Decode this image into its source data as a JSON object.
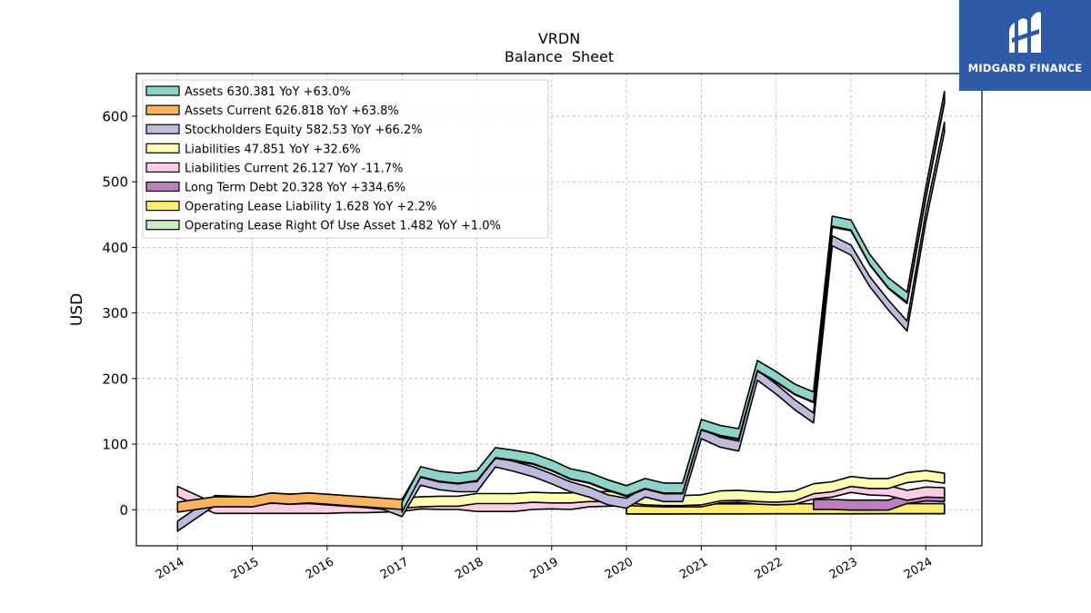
{
  "chart_data": {
    "type": "area",
    "title": "VRDN",
    "subtitle": "Balance  Sheet",
    "xlabel": "",
    "ylabel": "USD",
    "xlim": [
      2013.45,
      2024.75
    ],
    "ylim": [
      -55,
      665
    ],
    "yticks": [
      0,
      100,
      200,
      300,
      400,
      500,
      600
    ],
    "xticks": [
      "2014",
      "2015",
      "2016",
      "2017",
      "2018",
      "2019",
      "2020",
      "2021",
      "2022",
      "2023",
      "2024"
    ],
    "grid": true,
    "legend_position": "top-left",
    "series": [
      {
        "name": "Assets  630.381 YoY +63.0%",
        "color": "#8dd3c7",
        "x": [
          2017.0,
          2017.25,
          2017.5,
          2017.75,
          2018.0,
          2018.25,
          2018.5,
          2018.75,
          2019.0,
          2019.25,
          2019.5,
          2019.75,
          2020.0,
          2020.25,
          2020.5,
          2020.75,
          2021.0,
          2021.25,
          2021.5,
          2021.75,
          2022.0,
          2022.25,
          2022.5,
          2022.75,
          2023.0,
          2023.25,
          2023.5,
          2023.75,
          2024.0,
          2024.25
        ],
        "values": [
          4,
          58,
          51,
          48,
          52,
          87,
          83,
          78,
          68,
          55,
          49,
          38,
          29,
          40,
          33,
          33,
          130,
          121,
          116,
          220,
          203,
          184,
          172,
          440,
          434,
          382,
          346,
          324,
          484,
          630
        ]
      },
      {
        "name": "Assets Current  626.818 YoY +63.8%",
        "color": "#fdb462",
        "x": [
          2014.0,
          2014.5,
          2015.0,
          2015.25,
          2015.5,
          2015.75,
          2016.0,
          2016.25,
          2016.5,
          2016.75,
          2017.0,
          2017.25,
          2017.5,
          2017.75,
          2018.0,
          2018.25,
          2018.5,
          2018.75,
          2019.0,
          2019.25,
          2019.5,
          2019.75,
          2020.0,
          2020.25,
          2020.5,
          2020.75,
          2021.0,
          2021.25,
          2021.5,
          2021.75,
          2022.0,
          2022.25,
          2022.5,
          2022.75,
          2023.0,
          2023.25,
          2023.5,
          2023.75,
          2024.0,
          2024.25
        ],
        "values": [
          4,
          12,
          12,
          18,
          16,
          18,
          16,
          14,
          12,
          10,
          8,
          57,
          50,
          47,
          51,
          86,
          82,
          77,
          67,
          54,
          48,
          37,
          28,
          39,
          32,
          32,
          129,
          120,
          115,
          219,
          202,
          183,
          171,
          438,
          433,
          381,
          345,
          322,
          482,
          627
        ]
      },
      {
        "name": "Stockholders Equity  582.53 YoY +66.2%",
        "color": "#bebada",
        "x": [
          2014.0,
          2014.5,
          2015.0,
          2015.25,
          2015.5,
          2015.75,
          2016.0,
          2016.25,
          2016.5,
          2016.75,
          2017.0,
          2017.25,
          2017.5,
          2017.75,
          2018.0,
          2018.25,
          2018.5,
          2018.75,
          2019.0,
          2019.25,
          2019.5,
          2019.75,
          2020.0,
          2020.25,
          2020.5,
          2020.75,
          2021.0,
          2021.25,
          2021.5,
          2021.75,
          2022.0,
          2022.25,
          2022.5,
          2022.75,
          2023.0,
          2023.25,
          2023.5,
          2023.75,
          2024.0,
          2024.25
        ],
        "values": [
          -25,
          14,
          12,
          18,
          16,
          17,
          15,
          13,
          11,
          8,
          -3,
          45,
          38,
          35,
          35,
          73,
          66,
          58,
          47,
          35,
          27,
          15,
          10,
          27,
          20,
          20,
          116,
          103,
          97,
          205,
          184,
          160,
          140,
          410,
          396,
          348,
          312,
          280,
          446,
          583
        ]
      },
      {
        "name": "Liabilities  47.851 YoY +32.6%",
        "color": "#ffffb3",
        "x": [
          2017.0,
          2017.25,
          2017.5,
          2017.75,
          2018.0,
          2018.25,
          2018.5,
          2018.75,
          2019.0,
          2019.25,
          2019.5,
          2019.75,
          2020.0,
          2020.25,
          2020.5,
          2020.75,
          2021.0,
          2021.25,
          2021.5,
          2021.75,
          2022.0,
          2022.25,
          2022.5,
          2022.75,
          2023.0,
          2023.25,
          2023.5,
          2023.75,
          2024.0,
          2024.25
        ],
        "values": [
          10,
          12,
          13,
          13,
          17,
          17,
          17,
          19,
          18,
          18,
          20,
          20,
          19,
          15,
          14,
          14,
          15,
          21,
          22,
          20,
          19,
          21,
          32,
          35,
          43,
          40,
          40,
          49,
          52,
          48
        ]
      },
      {
        "name": "Liabilities Current  26.127 YoY -11.7%",
        "color": "#fccde5",
        "x": [
          2014.0,
          2014.5,
          2015.0,
          2015.25,
          2015.5,
          2015.75,
          2016.0,
          2016.25,
          2016.5,
          2016.75,
          2017.0,
          2017.25,
          2017.5,
          2017.75,
          2018.0,
          2018.25,
          2018.5,
          2018.75,
          2019.0,
          2019.25,
          2019.5,
          2019.75,
          2020.0,
          2020.25,
          2020.5,
          2020.75,
          2021.0,
          2021.25,
          2021.5,
          2021.75,
          2022.0,
          2022.25,
          2022.5,
          2022.75,
          2023.0,
          2023.25,
          2023.5,
          2023.75,
          2024.0,
          2024.25
        ],
        "values": [
          28,
          2,
          2,
          2,
          2,
          2,
          2,
          3,
          3,
          4,
          5,
          9,
          8,
          8,
          5,
          5,
          5,
          8,
          9,
          8,
          12,
          13,
          14,
          13,
          12,
          12,
          12,
          18,
          19,
          16,
          15,
          16,
          24,
          27,
          34,
          30,
          29,
          22,
          27,
          26
        ]
      },
      {
        "name": "Long Term Debt  20.328 YoY +334.6%",
        "color": "#bc80bd",
        "x": [
          2022.5,
          2022.75,
          2023.0,
          2023.25,
          2023.5,
          2023.75,
          2024.0,
          2024.25
        ],
        "values": [
          8,
          8,
          7,
          7,
          7,
          17,
          21,
          20
        ]
      },
      {
        "name": "Operating Lease Liability  1.628 YoY +2.2%",
        "color": "#ffed6f",
        "x": [
          2020.0,
          2020.5,
          2021.0,
          2021.5,
          2022.0,
          2022.5,
          2023.0,
          2023.5,
          2024.0,
          2024.25
        ],
        "values": [
          1.3,
          1.3,
          1.4,
          1.4,
          1.5,
          1.5,
          1.5,
          1.6,
          1.6,
          1.6
        ]
      },
      {
        "name": "Operating Lease Right Of Use Asset  1.482 YoY +1.0%",
        "color": "#ccebc5",
        "x": [
          2020.0,
          2020.5,
          2021.0,
          2021.5,
          2022.0,
          2022.5,
          2023.0,
          2023.5,
          2024.0,
          2024.25
        ],
        "values": [
          1.2,
          1.2,
          1.3,
          1.3,
          1.4,
          1.4,
          1.4,
          1.5,
          1.5,
          1.5
        ]
      }
    ]
  },
  "brand": {
    "name": "MIDGARD FINANCE",
    "logo_icon": "midgard-logo-icon",
    "background": "#2f5aa8"
  }
}
